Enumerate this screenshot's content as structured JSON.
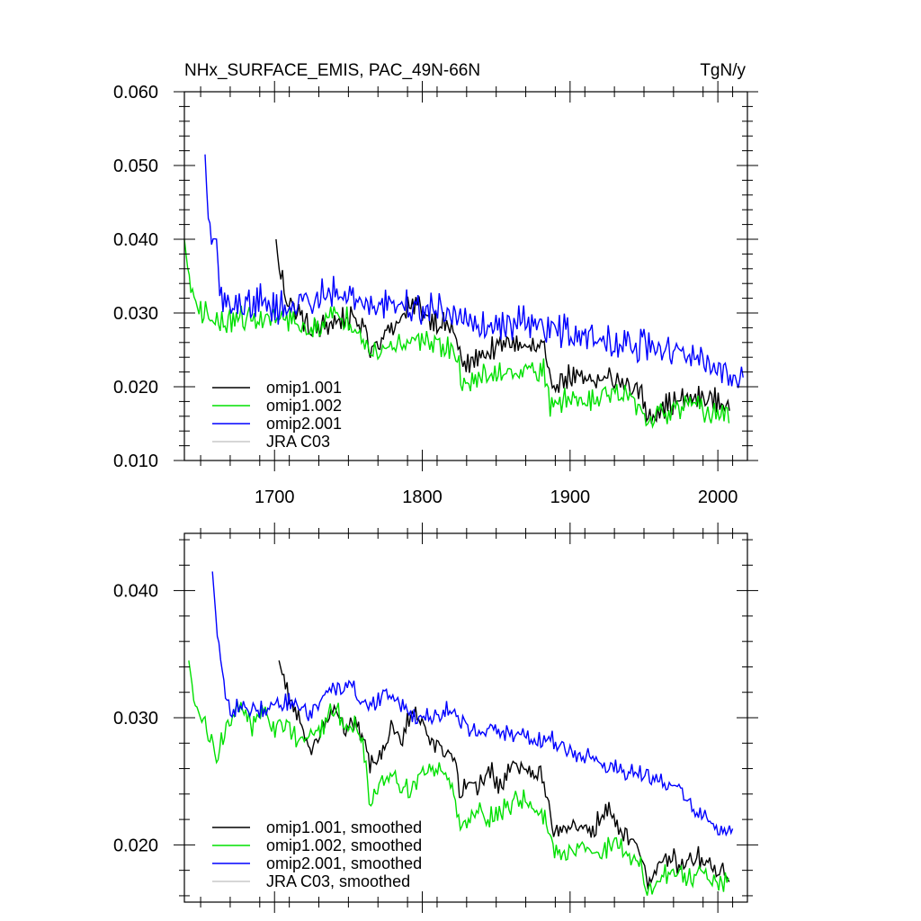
{
  "chart_data": [
    {
      "type": "line",
      "title": "NHx_SURFACE_EMIS, PAC_49N-66N",
      "units": "TgN/y",
      "xlim": [
        1639,
        2020
      ],
      "ylim": [
        0.01,
        0.06
      ],
      "xticks": [
        1700,
        1800,
        1900,
        2000
      ],
      "yticks": [
        "0.010",
        "0.020",
        "0.030",
        "0.040",
        "0.050",
        "0.060"
      ],
      "yticks_values": [
        0.01,
        0.02,
        0.03,
        0.04,
        0.05,
        0.06
      ],
      "grid": false,
      "legend": "bottom-left",
      "series": [
        {
          "name": "omip1.001",
          "color": "#000000",
          "noise": 0.0016,
          "points": [
            [
              1701,
              0.04
            ],
            [
              1703,
              0.036
            ],
            [
              1708,
              0.032
            ],
            [
              1715,
              0.03
            ],
            [
              1725,
              0.027
            ],
            [
              1735,
              0.028
            ],
            [
              1748,
              0.029
            ],
            [
              1760,
              0.028
            ],
            [
              1765,
              0.025
            ],
            [
              1775,
              0.027
            ],
            [
              1785,
              0.029
            ],
            [
              1795,
              0.031
            ],
            [
              1805,
              0.029
            ],
            [
              1815,
              0.028
            ],
            [
              1822,
              0.027
            ],
            [
              1828,
              0.022
            ],
            [
              1840,
              0.024
            ],
            [
              1850,
              0.025
            ],
            [
              1860,
              0.026
            ],
            [
              1870,
              0.025
            ],
            [
              1882,
              0.025
            ],
            [
              1886,
              0.02
            ],
            [
              1900,
              0.021
            ],
            [
              1915,
              0.02
            ],
            [
              1925,
              0.021
            ],
            [
              1940,
              0.02
            ],
            [
              1948,
              0.019
            ],
            [
              1952,
              0.016
            ],
            [
              1965,
              0.017
            ],
            [
              1980,
              0.018
            ],
            [
              1995,
              0.018
            ],
            [
              2008,
              0.017
            ]
          ]
        },
        {
          "name": "omip1.002",
          "color": "#00e000",
          "noise": 0.0016,
          "points": [
            [
              1639,
              0.04
            ],
            [
              1643,
              0.033
            ],
            [
              1650,
              0.03
            ],
            [
              1657,
              0.029
            ],
            [
              1665,
              0.028
            ],
            [
              1675,
              0.029
            ],
            [
              1690,
              0.029
            ],
            [
              1705,
              0.029
            ],
            [
              1715,
              0.028
            ],
            [
              1725,
              0.027
            ],
            [
              1735,
              0.029
            ],
            [
              1748,
              0.029
            ],
            [
              1760,
              0.027
            ],
            [
              1765,
              0.024
            ],
            [
              1775,
              0.025
            ],
            [
              1790,
              0.026
            ],
            [
              1800,
              0.026
            ],
            [
              1815,
              0.025
            ],
            [
              1822,
              0.024
            ],
            [
              1828,
              0.02
            ],
            [
              1840,
              0.021
            ],
            [
              1855,
              0.022
            ],
            [
              1870,
              0.022
            ],
            [
              1882,
              0.022
            ],
            [
              1886,
              0.017
            ],
            [
              1900,
              0.018
            ],
            [
              1915,
              0.018
            ],
            [
              1925,
              0.019
            ],
            [
              1940,
              0.018
            ],
            [
              1948,
              0.017
            ],
            [
              1952,
              0.015
            ],
            [
              1965,
              0.016
            ],
            [
              1980,
              0.017
            ],
            [
              1995,
              0.016
            ],
            [
              2008,
              0.016
            ]
          ]
        },
        {
          "name": "omip2.001",
          "color": "#0000ff",
          "noise": 0.0022,
          "points": [
            [
              1653,
              0.0515
            ],
            [
              1655,
              0.043
            ],
            [
              1660,
              0.038
            ],
            [
              1665,
              0.031
            ],
            [
              1675,
              0.031
            ],
            [
              1690,
              0.031
            ],
            [
              1705,
              0.03
            ],
            [
              1720,
              0.031
            ],
            [
              1735,
              0.032
            ],
            [
              1750,
              0.032
            ],
            [
              1765,
              0.031
            ],
            [
              1780,
              0.031
            ],
            [
              1795,
              0.03
            ],
            [
              1815,
              0.03
            ],
            [
              1830,
              0.029
            ],
            [
              1850,
              0.028
            ],
            [
              1870,
              0.028
            ],
            [
              1890,
              0.027
            ],
            [
              1905,
              0.027
            ],
            [
              1920,
              0.026
            ],
            [
              1940,
              0.025
            ],
            [
              1955,
              0.025
            ],
            [
              1970,
              0.024
            ],
            [
              1985,
              0.024
            ],
            [
              2000,
              0.022
            ],
            [
              2010,
              0.021
            ],
            [
              2018,
              0.022
            ]
          ]
        },
        {
          "name": "JRA C03",
          "color": "#c8c8c8",
          "points": []
        }
      ]
    },
    {
      "type": "line",
      "title": "",
      "xlim": [
        1639,
        2020
      ],
      "ylim": [
        0.0155,
        0.0445
      ],
      "xticks": [
        1700,
        1800,
        1900,
        2000
      ],
      "yticks": [
        "0.020",
        "0.030",
        "0.040"
      ],
      "yticks_values": [
        0.02,
        0.03,
        0.04
      ],
      "grid": false,
      "legend": "bottom-left",
      "series": [
        {
          "name": "omip1.001, smoothed",
          "color": "#000000",
          "noise": 0.0008,
          "points": [
            [
              1703,
              0.0345
            ],
            [
              1708,
              0.032
            ],
            [
              1713,
              0.031
            ],
            [
              1718,
              0.029
            ],
            [
              1724,
              0.027
            ],
            [
              1732,
              0.029
            ],
            [
              1740,
              0.0305
            ],
            [
              1748,
              0.029
            ],
            [
              1755,
              0.029
            ],
            [
              1760,
              0.0285
            ],
            [
              1765,
              0.026
            ],
            [
              1772,
              0.027
            ],
            [
              1780,
              0.029
            ],
            [
              1786,
              0.028
            ],
            [
              1792,
              0.03
            ],
            [
              1799,
              0.03
            ],
            [
              1805,
              0.028
            ],
            [
              1812,
              0.0275
            ],
            [
              1818,
              0.027
            ],
            [
              1822,
              0.027
            ],
            [
              1825,
              0.024
            ],
            [
              1832,
              0.0245
            ],
            [
              1840,
              0.0245
            ],
            [
              1847,
              0.0255
            ],
            [
              1852,
              0.024
            ],
            [
              1860,
              0.0265
            ],
            [
              1866,
              0.026
            ],
            [
              1872,
              0.0255
            ],
            [
              1880,
              0.0255
            ],
            [
              1884,
              0.0235
            ],
            [
              1888,
              0.021
            ],
            [
              1896,
              0.0215
            ],
            [
              1905,
              0.021
            ],
            [
              1915,
              0.021
            ],
            [
              1925,
              0.0225
            ],
            [
              1935,
              0.021
            ],
            [
              1945,
              0.02
            ],
            [
              1948,
              0.019
            ],
            [
              1952,
              0.017
            ],
            [
              1960,
              0.018
            ],
            [
              1968,
              0.019
            ],
            [
              1975,
              0.018
            ],
            [
              1985,
              0.019
            ],
            [
              1995,
              0.018
            ],
            [
              2004,
              0.0175
            ],
            [
              2008,
              0.0177
            ]
          ]
        },
        {
          "name": "omip1.002, smoothed",
          "color": "#00e000",
          "noise": 0.0008,
          "points": [
            [
              1642,
              0.0345
            ],
            [
              1645,
              0.032
            ],
            [
              1650,
              0.03
            ],
            [
              1656,
              0.0285
            ],
            [
              1661,
              0.027
            ],
            [
              1667,
              0.029
            ],
            [
              1672,
              0.03
            ],
            [
              1678,
              0.031
            ],
            [
              1685,
              0.029
            ],
            [
              1692,
              0.03
            ],
            [
              1700,
              0.029
            ],
            [
              1708,
              0.0295
            ],
            [
              1716,
              0.028
            ],
            [
              1724,
              0.0285
            ],
            [
              1732,
              0.029
            ],
            [
              1740,
              0.0305
            ],
            [
              1748,
              0.0295
            ],
            [
              1755,
              0.029
            ],
            [
              1760,
              0.0275
            ],
            [
              1765,
              0.023
            ],
            [
              1772,
              0.025
            ],
            [
              1780,
              0.0255
            ],
            [
              1790,
              0.024
            ],
            [
              1800,
              0.0255
            ],
            [
              1808,
              0.026
            ],
            [
              1815,
              0.0255
            ],
            [
              1820,
              0.0245
            ],
            [
              1826,
              0.0215
            ],
            [
              1835,
              0.0225
            ],
            [
              1845,
              0.022
            ],
            [
              1855,
              0.0225
            ],
            [
              1865,
              0.0235
            ],
            [
              1873,
              0.023
            ],
            [
              1882,
              0.022
            ],
            [
              1886,
              0.0205
            ],
            [
              1890,
              0.019
            ],
            [
              1900,
              0.0195
            ],
            [
              1910,
              0.02
            ],
            [
              1920,
              0.019
            ],
            [
              1930,
              0.02
            ],
            [
              1940,
              0.019
            ],
            [
              1948,
              0.018
            ],
            [
              1952,
              0.016
            ],
            [
              1960,
              0.017
            ],
            [
              1970,
              0.018
            ],
            [
              1980,
              0.017
            ],
            [
              1990,
              0.018
            ],
            [
              2000,
              0.017
            ],
            [
              2008,
              0.0168
            ]
          ]
        },
        {
          "name": "omip2.001, smoothed",
          "color": "#0000ff",
          "noise": 0.0007,
          "points": [
            [
              1658,
              0.0415
            ],
            [
              1661,
              0.037
            ],
            [
              1665,
              0.033
            ],
            [
              1670,
              0.03
            ],
            [
              1676,
              0.031
            ],
            [
              1684,
              0.0305
            ],
            [
              1692,
              0.0305
            ],
            [
              1700,
              0.031
            ],
            [
              1708,
              0.031
            ],
            [
              1716,
              0.031
            ],
            [
              1722,
              0.03
            ],
            [
              1730,
              0.031
            ],
            [
              1738,
              0.0325
            ],
            [
              1746,
              0.032
            ],
            [
              1752,
              0.0325
            ],
            [
              1760,
              0.031
            ],
            [
              1768,
              0.031
            ],
            [
              1775,
              0.032
            ],
            [
              1785,
              0.031
            ],
            [
              1795,
              0.03
            ],
            [
              1805,
              0.03
            ],
            [
              1818,
              0.0305
            ],
            [
              1832,
              0.029
            ],
            [
              1845,
              0.029
            ],
            [
              1860,
              0.0285
            ],
            [
              1875,
              0.028
            ],
            [
              1890,
              0.028
            ],
            [
              1905,
              0.027
            ],
            [
              1920,
              0.0265
            ],
            [
              1935,
              0.0255
            ],
            [
              1950,
              0.0255
            ],
            [
              1962,
              0.025
            ],
            [
              1972,
              0.0245
            ],
            [
              1982,
              0.023
            ],
            [
              1992,
              0.022
            ],
            [
              2002,
              0.021
            ],
            [
              2010,
              0.021
            ]
          ]
        },
        {
          "name": "JRA C03, smoothed",
          "color": "#c8c8c8",
          "points": []
        }
      ]
    }
  ]
}
